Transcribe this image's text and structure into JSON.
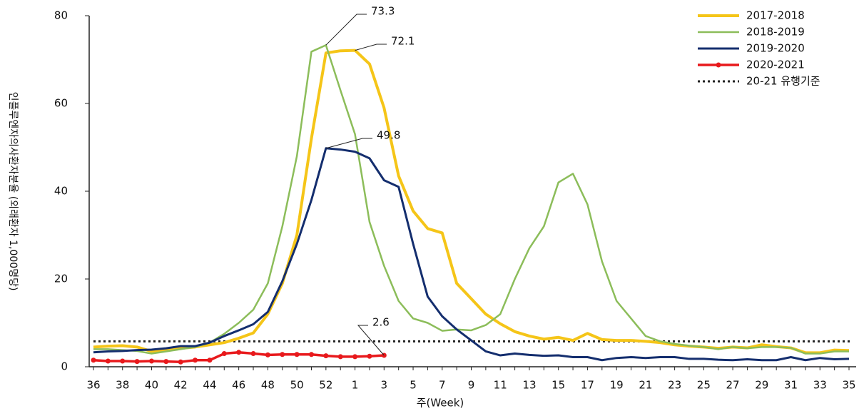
{
  "chart_data": {
    "type": "line",
    "y_label": "인플루엔자의사환자분율 (외래환자 1,000명당)",
    "x_label": "주(Week)",
    "categories": [
      "36",
      null,
      "38",
      null,
      "40",
      null,
      "42",
      null,
      "44",
      null,
      "46",
      null,
      "48",
      null,
      "50",
      null,
      "52",
      null,
      "1",
      null,
      "3",
      null,
      "5",
      null,
      "7",
      null,
      "9",
      null,
      "11",
      null,
      "13",
      null,
      "15",
      null,
      "17",
      null,
      "19",
      null,
      "21",
      null,
      "23",
      null,
      "25",
      null,
      "27",
      null,
      "29",
      null,
      "31",
      null,
      "33",
      null,
      "35"
    ],
    "ylim": [
      0,
      80
    ],
    "yticks": [
      0,
      20,
      40,
      60,
      80
    ],
    "series": [
      {
        "name": "2017-2018",
        "color": "#f5c518",
        "width": 4,
        "values": [
          4.5,
          4.7,
          4.8,
          4.5,
          3.5,
          3.8,
          4.2,
          4.5,
          5,
          5.5,
          6.5,
          7.7,
          12,
          19,
          30,
          52,
          71.5,
          72,
          72.1,
          69,
          59,
          43.5,
          35.5,
          31.5,
          30.5,
          19,
          15.5,
          12,
          9.8,
          8,
          7,
          6.3,
          6.7,
          6,
          7.6,
          6.2,
          6,
          6,
          5.8,
          5.5,
          5,
          4.7,
          4.5,
          4.2,
          4.5,
          4.3,
          5,
          4.6,
          4.3,
          3.2,
          3.2,
          3.8,
          3.7
        ]
      },
      {
        "name": "2018-2019",
        "color": "#8cbd5a",
        "width": 2.5,
        "values": [
          4,
          4,
          3.8,
          3.6,
          3,
          3.5,
          4,
          4.5,
          5.5,
          7.5,
          10,
          13,
          19,
          32,
          48,
          71.8,
          73.3,
          63,
          53,
          33,
          23,
          15,
          11,
          10,
          8.2,
          8.5,
          8.3,
          9.5,
          12,
          20,
          27,
          32,
          42,
          44,
          37,
          24,
          15,
          11,
          7,
          5.8,
          5.2,
          4.8,
          4.5,
          4,
          4.5,
          4.2,
          4.5,
          4.5,
          4.3,
          3,
          3,
          3.5,
          3.5
        ]
      },
      {
        "name": "2019-2020",
        "color": "#142e6e",
        "width": 3,
        "values": [
          3.3,
          3.5,
          3.6,
          3.8,
          3.9,
          4.2,
          4.7,
          4.7,
          5.5,
          7,
          8.3,
          9.7,
          12.5,
          19.5,
          28,
          38,
          49.8,
          49.5,
          49,
          47.5,
          42.5,
          41,
          28,
          16,
          11.5,
          8.5,
          6,
          3.5,
          2.6,
          3,
          2.7,
          2.5,
          2.6,
          2.2,
          2.2,
          1.5,
          2,
          2.2,
          2,
          2.2,
          2.2,
          1.8,
          1.8,
          1.6,
          1.5,
          1.7,
          1.5,
          1.5,
          2.2,
          1.5,
          2,
          1.7,
          1.8
        ]
      },
      {
        "name": "2020-2021",
        "color": "#e8191c",
        "width": 3.5,
        "marker": true,
        "values": [
          1.5,
          1.3,
          1.3,
          1.2,
          1.3,
          1.2,
          1.1,
          1.5,
          1.5,
          3,
          3.3,
          3,
          2.7,
          2.8,
          2.8,
          2.8,
          2.5,
          2.3,
          2.3,
          2.4,
          2.6,
          null,
          null,
          null,
          null,
          null,
          null,
          null,
          null,
          null,
          null,
          null,
          null,
          null,
          null,
          null,
          null,
          null,
          null,
          null,
          null,
          null,
          null,
          null,
          null,
          null,
          null,
          null,
          null,
          null,
          null,
          null,
          null
        ]
      }
    ],
    "threshold": {
      "name": "20-21 유행기준",
      "value": 5.8,
      "color": "#222"
    }
  }
}
